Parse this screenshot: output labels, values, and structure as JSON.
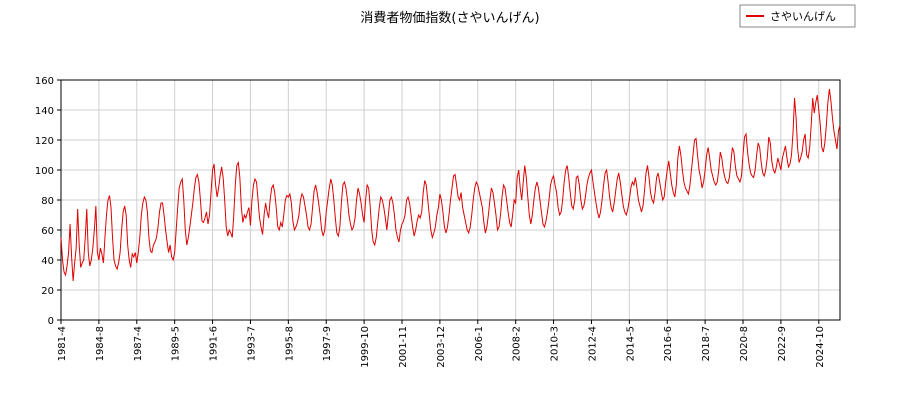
{
  "chart_data": {
    "type": "line",
    "title": "消費者物価指数(さやいんげん)",
    "categories": [
      "1981-4",
      null,
      null,
      null,
      null,
      null,
      null,
      null,
      null,
      null,
      null,
      null,
      null,
      null,
      null,
      null,
      null,
      null,
      null,
      null,
      null,
      null,
      null,
      null,
      null,
      "1984-8",
      null,
      null,
      null,
      null,
      null,
      null,
      null,
      null,
      null,
      null,
      null,
      null,
      null,
      null,
      null,
      null,
      null,
      null,
      null,
      null,
      null,
      null,
      null,
      null,
      "1987-4",
      null,
      null,
      null,
      null,
      null,
      null,
      null,
      null,
      null,
      null,
      null,
      null,
      null,
      null,
      null,
      null,
      null,
      null,
      null,
      null,
      null,
      null,
      null,
      null,
      "1989-5",
      null,
      null,
      null,
      null,
      null,
      null,
      null,
      null,
      null,
      null,
      null,
      null,
      null,
      null,
      null,
      null,
      null,
      null,
      null,
      null,
      null,
      null,
      null,
      null,
      "1991-6",
      null,
      null,
      null,
      null,
      null,
      null,
      null,
      null,
      null,
      null,
      null,
      null,
      null,
      null,
      null,
      null,
      null,
      null,
      null,
      null,
      null,
      null,
      null,
      null,
      "1993-7",
      null,
      null,
      null,
      null,
      null,
      null,
      null,
      null,
      null,
      null,
      null,
      null,
      null,
      null,
      null,
      null,
      null,
      null,
      null,
      null,
      null,
      null,
      null,
      null,
      "1995-8",
      null,
      null,
      null,
      null,
      null,
      null,
      null,
      null,
      null,
      null,
      null,
      null,
      null,
      null,
      null,
      null,
      null,
      null,
      null,
      null,
      null,
      null,
      null,
      null,
      "1997-9",
      null,
      null,
      null,
      null,
      null,
      null,
      null,
      null,
      null,
      null,
      null,
      null,
      null,
      null,
      null,
      null,
      null,
      null,
      null,
      null,
      null,
      null,
      null,
      null,
      "1999-10",
      null,
      null,
      null,
      null,
      null,
      null,
      null,
      null,
      null,
      null,
      null,
      null,
      null,
      null,
      null,
      null,
      null,
      null,
      null,
      null,
      null,
      null,
      null,
      null,
      "2001-11",
      null,
      null,
      null,
      null,
      null,
      null,
      null,
      null,
      null,
      null,
      null,
      null,
      null,
      null,
      null,
      null,
      null,
      null,
      null,
      null,
      null,
      null,
      null,
      null,
      "2003-12",
      null,
      null,
      null,
      null,
      null,
      null,
      null,
      null,
      null,
      null,
      null,
      null,
      null,
      null,
      null,
      null,
      null,
      null,
      null,
      null,
      null,
      null,
      null,
      null,
      "2006-1",
      null,
      null,
      null,
      null,
      null,
      null,
      null,
      null,
      null,
      null,
      null,
      null,
      null,
      null,
      null,
      null,
      null,
      null,
      null,
      null,
      null,
      null,
      null,
      null,
      "2008-2",
      null,
      null,
      null,
      null,
      null,
      null,
      null,
      null,
      null,
      null,
      null,
      null,
      null,
      null,
      null,
      null,
      null,
      null,
      null,
      null,
      null,
      null,
      null,
      null,
      "2010-3",
      null,
      null,
      null,
      null,
      null,
      null,
      null,
      null,
      null,
      null,
      null,
      null,
      null,
      null,
      null,
      null,
      null,
      null,
      null,
      null,
      null,
      null,
      null,
      null,
      "2012-4",
      null,
      null,
      null,
      null,
      null,
      null,
      null,
      null,
      null,
      null,
      null,
      null,
      null,
      null,
      null,
      null,
      null,
      null,
      null,
      null,
      null,
      null,
      null,
      null,
      "2014-5",
      null,
      null,
      null,
      null,
      null,
      null,
      null,
      null,
      null,
      null,
      null,
      null,
      null,
      null,
      null,
      null,
      null,
      null,
      null,
      null,
      null,
      null,
      null,
      null,
      "2016-6",
      null,
      null,
      null,
      null,
      null,
      null,
      null,
      null,
      null,
      null,
      null,
      null,
      null,
      null,
      null,
      null,
      null,
      null,
      null,
      null,
      null,
      null,
      null,
      null,
      "2018-7",
      null,
      null,
      null,
      null,
      null,
      null,
      null,
      null,
      null,
      null,
      null,
      null,
      null,
      null,
      null,
      null,
      null,
      null,
      null,
      null,
      null,
      null,
      null,
      null,
      "2020-8",
      null,
      null,
      null,
      null,
      null,
      null,
      null,
      null,
      null,
      null,
      null,
      null,
      null,
      null,
      null,
      null,
      null,
      null,
      null,
      null,
      null,
      null,
      null,
      null,
      "2022-9",
      null,
      null,
      null,
      null,
      null,
      null,
      null,
      null,
      null,
      null,
      null,
      null,
      null,
      null,
      null,
      null,
      null,
      null,
      null,
      null,
      null,
      null,
      null,
      null,
      "2024-10",
      null,
      null,
      null,
      null,
      null,
      null,
      null,
      null,
      null,
      null,
      null,
      null,
      null,
      null
    ],
    "series": [
      {
        "name": "さやいんげん",
        "color": "#e00000",
        "values": [
          55,
          40,
          32,
          30,
          36,
          45,
          64,
          42,
          26,
          38,
          48,
          74,
          50,
          35,
          38,
          40,
          55,
          74,
          45,
          36,
          40,
          48,
          60,
          76,
          45,
          40,
          48,
          44,
          38,
          55,
          70,
          80,
          83,
          75,
          55,
          40,
          36,
          34,
          38,
          45,
          60,
          72,
          76,
          70,
          50,
          40,
          35,
          44,
          42,
          45,
          38,
          45,
          55,
          70,
          78,
          82,
          80,
          72,
          55,
          46,
          45,
          50,
          52,
          55,
          62,
          72,
          78,
          78,
          70,
          60,
          52,
          45,
          50,
          42,
          40,
          45,
          60,
          75,
          88,
          92,
          94,
          80,
          60,
          50,
          55,
          62,
          70,
          78,
          88,
          95,
          97,
          92,
          80,
          66,
          65,
          68,
          72,
          64,
          70,
          85,
          100,
          104,
          90,
          82,
          88,
          96,
          102,
          95,
          80,
          62,
          56,
          60,
          58,
          55,
          70,
          90,
          103,
          105,
          95,
          75,
          65,
          70,
          68,
          72,
          75,
          63,
          80,
          90,
          94,
          92,
          80,
          68,
          62,
          57,
          70,
          78,
          72,
          68,
          80,
          88,
          90,
          85,
          75,
          62,
          60,
          65,
          62,
          70,
          80,
          83,
          82,
          84,
          78,
          66,
          60,
          62,
          65,
          70,
          80,
          84,
          82,
          76,
          70,
          62,
          60,
          64,
          75,
          86,
          90,
          85,
          78,
          70,
          60,
          56,
          60,
          72,
          80,
          88,
          94,
          90,
          80,
          68,
          58,
          56,
          62,
          78,
          90,
          92,
          88,
          80,
          70,
          64,
          60,
          62,
          68,
          80,
          88,
          84,
          78,
          70,
          65,
          80,
          90,
          88,
          76,
          60,
          52,
          50,
          55,
          65,
          75,
          82,
          80,
          75,
          68,
          60,
          70,
          80,
          82,
          78,
          70,
          60,
          55,
          52,
          60,
          64,
          66,
          70,
          80,
          82,
          78,
          70,
          62,
          56,
          60,
          66,
          70,
          68,
          72,
          85,
          93,
          90,
          80,
          70,
          60,
          55,
          58,
          62,
          70,
          75,
          84,
          80,
          72,
          62,
          58,
          62,
          70,
          80,
          88,
          96,
          97,
          90,
          82,
          80,
          85,
          75,
          70,
          65,
          60,
          58,
          62,
          70,
          80,
          88,
          92,
          90,
          85,
          80,
          75,
          65,
          58,
          62,
          70,
          80,
          88,
          85,
          78,
          70,
          60,
          62,
          70,
          82,
          90,
          88,
          80,
          72,
          65,
          62,
          70,
          80,
          78,
          95,
          100,
          88,
          80,
          92,
          103,
          95,
          82,
          70,
          64,
          70,
          80,
          88,
          92,
          88,
          80,
          72,
          64,
          62,
          66,
          72,
          80,
          90,
          94,
          96,
          90,
          85,
          75,
          70,
          72,
          80,
          92,
          100,
          103,
          95,
          85,
          76,
          74,
          80,
          95,
          96,
          90,
          80,
          74,
          76,
          82,
          90,
          95,
          98,
          100,
          92,
          85,
          78,
          72,
          68,
          72,
          80,
          90,
          98,
          100,
          92,
          82,
          75,
          72,
          78,
          86,
          94,
          98,
          92,
          84,
          76,
          72,
          70,
          74,
          80,
          88,
          92,
          90,
          95,
          88,
          80,
          76,
          72,
          76,
          86,
          98,
          103,
          95,
          85,
          80,
          78,
          85,
          95,
          98,
          92,
          86,
          80,
          82,
          92,
          100,
          106,
          98,
          90,
          85,
          82,
          90,
          108,
          116,
          110,
          100,
          92,
          88,
          86,
          84,
          90,
          100,
          110,
          120,
          121,
          110,
          100,
          95,
          88,
          92,
          100,
          110,
          115,
          108,
          100,
          96,
          92,
          90,
          92,
          100,
          112,
          108,
          100,
          95,
          92,
          91,
          95,
          105,
          115,
          112,
          102,
          96,
          94,
          92,
          96,
          110,
          122,
          124,
          112,
          104,
          98,
          96,
          95,
          100,
          110,
          118,
          115,
          105,
          98,
          96,
          100,
          108,
          122,
          118,
          106,
          100,
          98,
          102,
          108,
          104,
          100,
          108,
          112,
          116,
          108,
          102,
          104,
          110,
          125,
          148,
          135,
          115,
          105,
          108,
          112,
          120,
          124,
          110,
          108,
          115,
          130,
          148,
          138,
          145,
          150,
          140,
          130,
          115,
          112,
          118,
          130,
          145,
          154,
          146,
          135,
          126,
          120,
          114,
          126,
          130
        ]
      }
    ],
    "ylim": [
      0,
      160
    ],
    "yticks": [
      0,
      20,
      40,
      60,
      80,
      100,
      120,
      140,
      160
    ],
    "grid": true,
    "legend": "upper right"
  }
}
